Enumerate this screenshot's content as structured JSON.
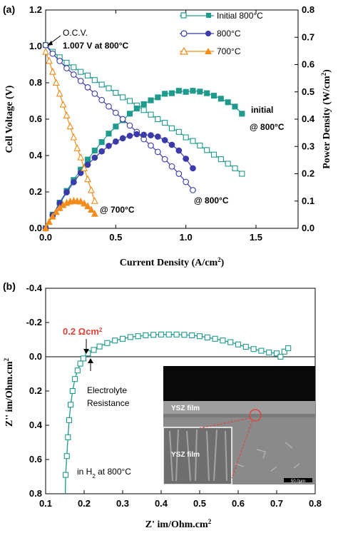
{
  "chart_data": [
    {
      "id": "a",
      "panel_label": "(a)",
      "type": "line",
      "xlabel": "Current Density (A/cm",
      "xlabel_sup": "2",
      "xlabel_end": ")",
      "ylabel": "Cell Voltage (V)",
      "y2label": "Power Density (W/cm",
      "y2label_sup": "2",
      "y2label_end": ")",
      "xlim": [
        0,
        1.8
      ],
      "ylim": [
        0,
        1.2
      ],
      "y2lim": [
        0,
        0.8
      ],
      "xticks": [
        "0.0",
        "0.5",
        "1.0",
        "1.5"
      ],
      "yticks": [
        "0.0",
        "0.2",
        "0.4",
        "0.6",
        "0.8",
        "1.0",
        "1.2"
      ],
      "y2ticks": [
        "0.0",
        "0.1",
        "0.2",
        "0.3",
        "0.4",
        "0.5",
        "0.6",
        "0.7",
        "0.8"
      ],
      "legend_position": "top-right",
      "legend": [
        {
          "label": "Initial 800°C",
          "color": "#1f9a8c",
          "marker": "square"
        },
        {
          "label": "800°C",
          "color": "#3a3aa8",
          "marker": "circle"
        },
        {
          "label": "700°C",
          "color": "#f28c1a",
          "marker": "triangle"
        }
      ],
      "annotations": {
        "ocv_line1": "O.C.V.",
        "ocv_line2": "1.007 V at 800°C",
        "initial_line1": "initial",
        "initial_line2": "@ 800°C",
        "label_800": "@ 800°C",
        "label_700": "@ 700°C"
      },
      "series": [
        {
          "name": "Initial 800°C",
          "kind": "voltage",
          "axis": "left",
          "color": "#1f9a8c",
          "marker": "square-open",
          "x": [
            0.0,
            0.05,
            0.1,
            0.15,
            0.2,
            0.25,
            0.3,
            0.35,
            0.4,
            0.45,
            0.5,
            0.55,
            0.6,
            0.65,
            0.7,
            0.75,
            0.8,
            0.85,
            0.9,
            0.95,
            1.0,
            1.05,
            1.1,
            1.15,
            1.2,
            1.25,
            1.3,
            1.35,
            1.4
          ],
          "y": [
            1.007,
            0.97,
            0.94,
            0.91,
            0.885,
            0.86,
            0.84,
            0.815,
            0.79,
            0.77,
            0.745,
            0.72,
            0.7,
            0.675,
            0.65,
            0.625,
            0.6,
            0.58,
            0.55,
            0.53,
            0.5,
            0.48,
            0.455,
            0.43,
            0.405,
            0.38,
            0.355,
            0.33,
            0.3
          ]
        },
        {
          "name": "Initial 800°C",
          "kind": "power",
          "axis": "right",
          "color": "#1f9a8c",
          "marker": "square-filled",
          "x": [
            0.0,
            0.05,
            0.1,
            0.15,
            0.2,
            0.25,
            0.3,
            0.35,
            0.4,
            0.45,
            0.5,
            0.55,
            0.6,
            0.65,
            0.7,
            0.75,
            0.8,
            0.85,
            0.9,
            0.95,
            1.0,
            1.05,
            1.1,
            1.15,
            1.2,
            1.25,
            1.3,
            1.35,
            1.4
          ],
          "y": [
            0.0,
            0.05,
            0.094,
            0.137,
            0.177,
            0.215,
            0.252,
            0.285,
            0.316,
            0.347,
            0.373,
            0.396,
            0.42,
            0.439,
            0.455,
            0.469,
            0.48,
            0.493,
            0.495,
            0.504,
            0.5,
            0.504,
            0.501,
            0.495,
            0.486,
            0.475,
            0.462,
            0.446,
            0.42
          ]
        },
        {
          "name": "800°C",
          "kind": "voltage",
          "axis": "left",
          "color": "#3a3aa8",
          "marker": "circle-open",
          "x": [
            0.0,
            0.05,
            0.1,
            0.15,
            0.2,
            0.25,
            0.3,
            0.35,
            0.4,
            0.45,
            0.5,
            0.55,
            0.6,
            0.65,
            0.7,
            0.75,
            0.8,
            0.85,
            0.9,
            0.95,
            1.0,
            1.05
          ],
          "y": [
            1.007,
            0.96,
            0.92,
            0.88,
            0.845,
            0.81,
            0.775,
            0.74,
            0.705,
            0.67,
            0.635,
            0.6,
            0.565,
            0.53,
            0.49,
            0.455,
            0.42,
            0.38,
            0.34,
            0.3,
            0.255,
            0.21
          ]
        },
        {
          "name": "800°C",
          "kind": "power",
          "axis": "right",
          "color": "#3a3aa8",
          "marker": "circle-filled",
          "x": [
            0.0,
            0.05,
            0.1,
            0.15,
            0.2,
            0.25,
            0.3,
            0.35,
            0.4,
            0.45,
            0.5,
            0.55,
            0.6,
            0.65,
            0.7,
            0.75,
            0.8,
            0.85,
            0.9,
            0.95,
            1.0,
            1.05
          ],
          "y": [
            0.0,
            0.048,
            0.092,
            0.132,
            0.169,
            0.203,
            0.233,
            0.259,
            0.282,
            0.302,
            0.318,
            0.33,
            0.339,
            0.345,
            0.343,
            0.341,
            0.336,
            0.323,
            0.306,
            0.285,
            0.255,
            0.22
          ]
        },
        {
          "name": "700°C",
          "kind": "voltage",
          "axis": "left",
          "color": "#f28c1a",
          "marker": "triangle-open",
          "x": [
            0.0,
            0.025,
            0.05,
            0.075,
            0.1,
            0.125,
            0.15,
            0.175,
            0.2,
            0.225,
            0.25,
            0.275,
            0.3,
            0.325,
            0.35
          ],
          "y": [
            0.97,
            0.92,
            0.86,
            0.8,
            0.74,
            0.68,
            0.62,
            0.56,
            0.5,
            0.44,
            0.39,
            0.33,
            0.27,
            0.21,
            0.15
          ]
        },
        {
          "name": "700°C",
          "kind": "power",
          "axis": "right",
          "color": "#f28c1a",
          "marker": "triangle-filled",
          "x": [
            0.0,
            0.025,
            0.05,
            0.075,
            0.1,
            0.125,
            0.15,
            0.175,
            0.2,
            0.225,
            0.25,
            0.275,
            0.3,
            0.325,
            0.35
          ],
          "y": [
            0.0,
            0.023,
            0.043,
            0.06,
            0.074,
            0.085,
            0.093,
            0.098,
            0.1,
            0.099,
            0.098,
            0.091,
            0.081,
            0.068,
            0.053
          ]
        }
      ]
    },
    {
      "id": "b",
      "panel_label": "(b)",
      "type": "scatter",
      "xlabel": "Z' im/Ohm.cm",
      "xlabel_sup": "2",
      "ylabel": "Z'' im/Ohm.cm",
      "ylabel_sup": "2",
      "xlim": [
        0.1,
        0.8
      ],
      "ylim_inverted": [
        -0.4,
        0.8
      ],
      "xticks": [
        "0.1",
        "0.2",
        "0.3",
        "0.4",
        "0.5",
        "0.6",
        "0.7",
        "0.8"
      ],
      "yticks": [
        "-0.4",
        "-0.2",
        "0.0",
        "0.2",
        "0.4",
        "0.6",
        "0.8"
      ],
      "color": "#1f9a8c",
      "annotations": {
        "resistance_value": "0.2 Ωcm",
        "resistance_sup": "2",
        "electrolyte_line1": "Electrolyte",
        "electrolyte_line2": "Resistance",
        "condition_prefix": "in H",
        "condition_sub": "2",
        "condition_suffix": " at 800°C",
        "inset_film_label": "YSZ film",
        "inset_zoom_label": "YSZ film",
        "inset_scale": "50.0µm"
      },
      "series": [
        {
          "name": "impedance",
          "color": "#1f9a8c",
          "marker": "square-open",
          "x": [
            0.152,
            0.155,
            0.158,
            0.161,
            0.165,
            0.17,
            0.176,
            0.183,
            0.19,
            0.198,
            0.21,
            0.225,
            0.24,
            0.26,
            0.28,
            0.3,
            0.32,
            0.34,
            0.36,
            0.38,
            0.4,
            0.42,
            0.44,
            0.46,
            0.48,
            0.5,
            0.52,
            0.54,
            0.56,
            0.58,
            0.6,
            0.62,
            0.64,
            0.66,
            0.68,
            0.7,
            0.71,
            0.72,
            0.73
          ],
          "y": [
            0.69,
            0.58,
            0.47,
            0.37,
            0.28,
            0.2,
            0.13,
            0.08,
            0.04,
            0.01,
            -0.02,
            -0.04,
            -0.06,
            -0.08,
            -0.095,
            -0.105,
            -0.115,
            -0.12,
            -0.125,
            -0.128,
            -0.13,
            -0.13,
            -0.13,
            -0.128,
            -0.125,
            -0.12,
            -0.113,
            -0.105,
            -0.095,
            -0.085,
            -0.072,
            -0.058,
            -0.045,
            -0.035,
            -0.025,
            -0.02,
            0.0,
            -0.03,
            -0.05
          ]
        }
      ]
    }
  ]
}
